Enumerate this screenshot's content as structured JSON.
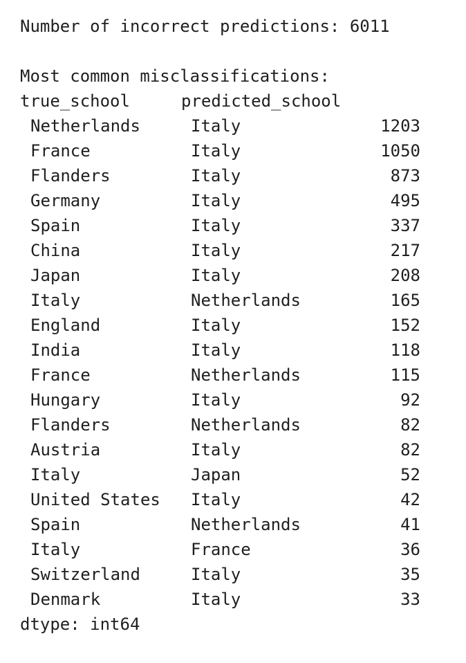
{
  "header": "Number of incorrect predictions: 6011",
  "subtitle": "Most common misclassifications:",
  "table": {
    "columns": [
      "true_school",
      "predicted_school"
    ],
    "rows": [
      [
        "Netherlands",
        "Italy",
        1203
      ],
      [
        "France",
        "Italy",
        1050
      ],
      [
        "Flanders",
        "Italy",
        873
      ],
      [
        "Germany",
        "Italy",
        495
      ],
      [
        "Spain",
        "Italy",
        337
      ],
      [
        "China",
        "Italy",
        217
      ],
      [
        "Japan",
        "Italy",
        208
      ],
      [
        "Italy",
        "Netherlands",
        165
      ],
      [
        "England",
        "Italy",
        152
      ],
      [
        "India",
        "Italy",
        118
      ],
      [
        "France",
        "Netherlands",
        115
      ],
      [
        "Hungary",
        "Italy",
        92
      ],
      [
        "Flanders",
        "Netherlands",
        82
      ],
      [
        "Austria",
        "Italy",
        82
      ],
      [
        "Italy",
        "Japan",
        52
      ],
      [
        "United States",
        "Italy",
        42
      ],
      [
        "Spain",
        "Netherlands",
        41
      ],
      [
        "Italy",
        "France",
        36
      ],
      [
        "Switzerland",
        "Italy",
        35
      ],
      [
        "Denmark",
        "Italy",
        33
      ]
    ]
  },
  "footer": "dtype: int64"
}
